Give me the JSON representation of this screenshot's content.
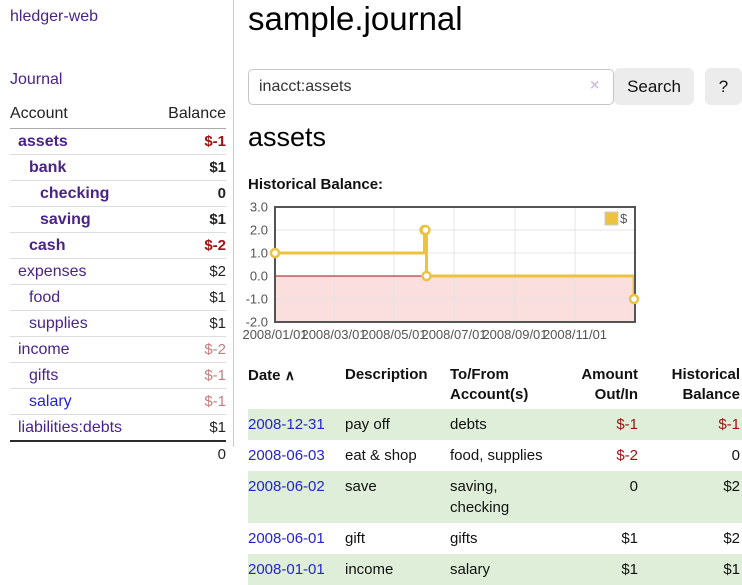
{
  "app": {
    "brand": "hledger-web",
    "nav_journal": "Journal"
  },
  "colors": {
    "link_purple": "#4a2387",
    "link_blue": "#2424cc",
    "negative_strong": "#9e1111",
    "negative_weak": "#c57e7e",
    "row_stripe_green": "#deeed8",
    "series_gold": "#edc240"
  },
  "sidebar": {
    "headers": {
      "account": "Account",
      "balance": "Balance"
    },
    "accounts": [
      {
        "name": "assets",
        "balance": "$-1"
      },
      {
        "name": "bank",
        "balance": "$1"
      },
      {
        "name": "checking",
        "balance": "0"
      },
      {
        "name": "saving",
        "balance": "$1"
      },
      {
        "name": "cash",
        "balance": "$-2"
      },
      {
        "name": "expenses",
        "balance": "$2"
      },
      {
        "name": "food",
        "balance": "$1"
      },
      {
        "name": "supplies",
        "balance": "$1"
      },
      {
        "name": "income",
        "balance": "$-2"
      },
      {
        "name": "gifts",
        "balance": "$-1"
      },
      {
        "name": "salary",
        "balance": "$-1"
      },
      {
        "name": "liabilities:debts",
        "balance": "$1"
      }
    ],
    "total": "0"
  },
  "main": {
    "title": "sample.journal",
    "search": {
      "value": "inacct:assets",
      "clear_icon": "×",
      "search_button": "Search",
      "help_button": "?"
    },
    "account_heading": "assets",
    "section_label": "Historical Balance:"
  },
  "chart_data": {
    "type": "line",
    "title": "Historical Balance:",
    "step": true,
    "x_range": [
      "2008-01-01",
      "2009-01-01"
    ],
    "ylim": [
      -2,
      3
    ],
    "y_ticks": [
      3.0,
      2.0,
      1.0,
      0.0,
      -1.0,
      -2.0
    ],
    "x_ticks": [
      {
        "d": "2008-01-01",
        "label": "2008/01/01"
      },
      {
        "d": "2008-03-01",
        "label": "2008/03/01"
      },
      {
        "d": "2008-05-01",
        "label": "2008/05/01"
      },
      {
        "d": "2008-07-01",
        "label": "2008/07/01"
      },
      {
        "d": "2008-09-01",
        "label": "2008/09/01"
      },
      {
        "d": "2008-11-01",
        "label": "2008/11/01"
      }
    ],
    "series": [
      {
        "name": "$",
        "color": "#edc240",
        "points": [
          [
            "2008-01-01",
            1
          ],
          [
            "2008-06-01",
            2
          ],
          [
            "2008-06-02",
            2
          ],
          [
            "2008-06-03",
            0
          ],
          [
            "2008-12-31",
            -1
          ]
        ]
      }
    ],
    "legend": "$",
    "legend_position": "top-right",
    "grid": true,
    "negative_region_color": "#fbdede",
    "zero_line_color": "#9d1313",
    "border_color": "#545454",
    "tick_label_color": "#545454"
  },
  "register": {
    "headers": {
      "date": "Date",
      "sort": "∧",
      "description": "Description",
      "tofrom_1": "To/From",
      "tofrom_2": "Account(s)",
      "amount_1": "Amount",
      "amount_2": "Out/In",
      "balance_1": "Historical",
      "balance_2": "Balance"
    },
    "rows": [
      {
        "date": "2008-12-31",
        "description": "pay off",
        "accounts": "debts",
        "amount": "$-1",
        "balance": "$-1"
      },
      {
        "date": "2008-06-03",
        "description": "eat & shop",
        "accounts": "food, supplies",
        "amount": "$-2",
        "balance": "0"
      },
      {
        "date": "2008-06-02",
        "description": "save",
        "accounts": "saving,\nchecking",
        "amount": "0",
        "balance": "$2"
      },
      {
        "date": "2008-06-01",
        "description": "gift",
        "accounts": "gifts",
        "amount": "$1",
        "balance": "$2"
      },
      {
        "date": "2008-01-01",
        "description": "income",
        "accounts": "salary",
        "amount": "$1",
        "balance": "$1"
      }
    ]
  }
}
